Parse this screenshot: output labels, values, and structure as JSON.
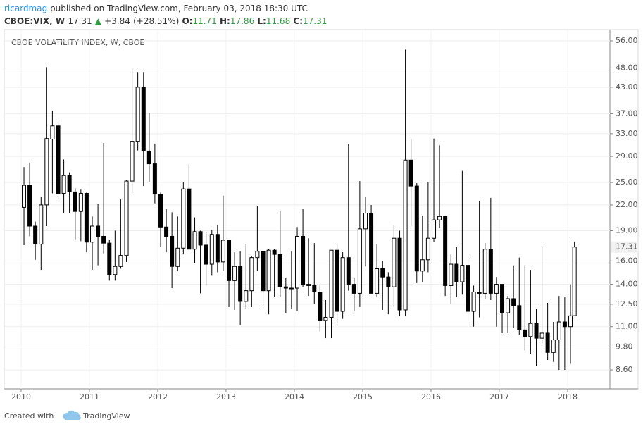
{
  "header": {
    "author": "ricardmag",
    "published": "published on TradingView.com, February 03, 2018 18:30 UTC",
    "symbol": "CBOE:VIX, W",
    "change": "+3.84",
    "change_pct": "(+28.51%)",
    "ohlc_labels": [
      "O:",
      "H:",
      "L:",
      "C:"
    ]
  },
  "chart_data": {
    "type": "candlestick",
    "title": "CBOE VOLATILITY INDEX, W, CBOE",
    "log_scale": true,
    "grid": true,
    "up_color": "#ffffff",
    "down_color": "#000000",
    "wick_color": "#000000",
    "xlim": [
      2009.753,
      2018.619
    ],
    "xticks": [
      2010,
      2011,
      2012,
      2013,
      2014,
      2015,
      2016,
      2017,
      2018
    ],
    "ylim": [
      7.72,
      59.0
    ],
    "yticks": [
      {
        "value": 8.6,
        "label": "8.60"
      },
      {
        "value": 9.8,
        "label": "9.80"
      },
      {
        "value": 11,
        "label": "11.00"
      },
      {
        "value": 12.5,
        "label": "12.50"
      },
      {
        "value": 14,
        "label": "14.00"
      },
      {
        "value": 16,
        "label": "16.00"
      },
      {
        "value": 19,
        "label": "19.00"
      },
      {
        "value": 22,
        "label": "22.00"
      },
      {
        "value": 25,
        "label": "25.00"
      },
      {
        "value": 29,
        "label": "29.00"
      },
      {
        "value": 33,
        "label": "33.00"
      },
      {
        "value": 37,
        "label": "37.00"
      },
      {
        "value": 43,
        "label": "43.00"
      },
      {
        "value": 48,
        "label": "48.00"
      },
      {
        "value": 56,
        "label": "56.00"
      }
    ],
    "x": [
      2010.042,
      2010.125,
      2010.208,
      2010.292,
      2010.375,
      2010.458,
      2010.542,
      2010.625,
      2010.708,
      2010.792,
      2010.875,
      2010.958,
      2011.042,
      2011.125,
      2011.208,
      2011.292,
      2011.375,
      2011.458,
      2011.542,
      2011.625,
      2011.708,
      2011.792,
      2011.875,
      2011.958,
      2012.042,
      2012.125,
      2012.208,
      2012.292,
      2012.375,
      2012.458,
      2012.542,
      2012.625,
      2012.708,
      2012.792,
      2012.875,
      2012.958,
      2013.042,
      2013.125,
      2013.208,
      2013.292,
      2013.375,
      2013.458,
      2013.542,
      2013.625,
      2013.708,
      2013.792,
      2013.875,
      2013.958,
      2014.042,
      2014.125,
      2014.208,
      2014.292,
      2014.375,
      2014.458,
      2014.542,
      2014.625,
      2014.708,
      2014.792,
      2014.875,
      2014.958,
      2015.042,
      2015.125,
      2015.208,
      2015.292,
      2015.375,
      2015.458,
      2015.542,
      2015.625,
      2015.708,
      2015.792,
      2015.875,
      2015.958,
      2016.042,
      2016.125,
      2016.208,
      2016.292,
      2016.375,
      2016.458,
      2016.542,
      2016.625,
      2016.708,
      2016.792,
      2016.875,
      2016.958,
      2017.042,
      2017.125,
      2017.208,
      2017.292,
      2017.375,
      2017.458,
      2017.542,
      2017.625,
      2017.708,
      2017.792,
      2017.875,
      2017.958,
      2018.042,
      2018.1
    ],
    "open": [
      21.7,
      24.6,
      19.5,
      17.6,
      22,
      32,
      34.5,
      23.5,
      26,
      23.7,
      21.2,
      23.5,
      17.8,
      19.5,
      18.4,
      17.7,
      14.8,
      15.5,
      16.5,
      25.2,
      31.6,
      43,
      29.9,
      27.8,
      23.4,
      19.4,
      18.4,
      15.5,
      17.2,
      24.1,
      17.1,
      18.9,
      17.5,
      15.7,
      18.6,
      15.9,
      18,
      14.3,
      15.5,
      12.7,
      13.5,
      16.3,
      16.9,
      13.5,
      17,
      16.6,
      13.8,
      13.7,
      13.7,
      18.4,
      14,
      13.9,
      13.4,
      11.4,
      11.6,
      17,
      12,
      16.3,
      14,
      13.3,
      19.2,
      21,
      13.3,
      15.3,
      14.6,
      13.8,
      18.2,
      12.1,
      28.4,
      24.5,
      15.1,
      16.1,
      18.2,
      20.2,
      20.6,
      13.9,
      15.7,
      14.2,
      15.6,
      12,
      13.4,
      13.3,
      17.1,
      13.3,
      14,
      11.9,
      12.9,
      12.4,
      10.8,
      10.4,
      11.2,
      10.3,
      10.6,
      9.5,
      10.2,
      11.3,
      11,
      11.71
    ],
    "high": [
      27.3,
      28,
      20,
      23,
      48.2,
      37.6,
      35.2,
      28.5,
      26.5,
      24.2,
      24,
      23.6,
      20.6,
      22.1,
      31.3,
      18,
      19,
      22.7,
      25.3,
      48,
      46.9,
      46.9,
      37.2,
      31.2,
      23.6,
      21.5,
      21.1,
      20.6,
      25.1,
      27.7,
      20.5,
      19,
      18.8,
      19.1,
      19.6,
      23.2,
      18,
      16.8,
      16.9,
      17.6,
      16.4,
      21.9,
      17,
      17.1,
      17.1,
      21.3,
      14.5,
      16.9,
      19.4,
      21.5,
      18.2,
      17.7,
      13.9,
      12.8,
      17,
      17.6,
      16.8,
      31.1,
      14.5,
      25.2,
      23,
      22,
      17.6,
      16,
      15,
      19.6,
      19,
      53.3,
      32,
      24.9,
      20.7,
      25,
      32.1,
      30.9,
      20.6,
      16.6,
      17.3,
      26.7,
      16.2,
      13.9,
      22.5,
      17.7,
      22.9,
      14.6,
      14,
      13.1,
      15.6,
      16.3,
      15.6,
      15.2,
      12.2,
      17.3,
      12.6,
      11.3,
      13.1,
      13,
      14,
      17.86
    ],
    "low": [
      17.5,
      18.4,
      16.1,
      15.2,
      19.5,
      23.5,
      22.7,
      21,
      21,
      18,
      17.9,
      16.8,
      15.2,
      15.6,
      16.7,
      14.3,
      14.3,
      15.3,
      15.9,
      23.5,
      30,
      24.5,
      25,
      22.2,
      17.3,
      16.8,
      13.7,
      15.1,
      16.6,
      17.1,
      15.8,
      13.3,
      13.9,
      14.7,
      15,
      15.1,
      12.3,
      12.1,
      11.1,
      12.2,
      12.3,
      15.1,
      12.3,
      11.8,
      13,
      13,
      11.9,
      12.2,
      12,
      13.8,
      13.1,
      12.5,
      10.7,
      10.3,
      10.3,
      11.2,
      11.5,
      13.5,
      12,
      12.3,
      15.5,
      13.3,
      13,
      12.1,
      11.8,
      12.4,
      11.7,
      11.7,
      19.5,
      14.1,
      14.2,
      15,
      17.8,
      19.3,
      13.1,
      12.5,
      13,
      13.2,
      11.3,
      11,
      11.6,
      12.9,
      12.8,
      11,
      10.6,
      10.6,
      10.9,
      10.5,
      9.6,
      9.4,
      8.8,
      9.9,
      9.1,
      9,
      8.6,
      8.6,
      8.9,
      11.68
    ],
    "close": [
      24.6,
      19.5,
      17.6,
      22,
      32.1,
      34.5,
      23.5,
      26,
      23.7,
      21.2,
      23.5,
      17.8,
      19.5,
      18.4,
      17.7,
      14.8,
      15.5,
      16.5,
      25.2,
      31.6,
      43,
      29.9,
      27.8,
      23.4,
      19.4,
      18.4,
      15.5,
      17.2,
      24.1,
      17.1,
      18.9,
      17.5,
      15.7,
      18.6,
      15.9,
      18,
      14.3,
      15.5,
      12.7,
      13.5,
      16.3,
      16.9,
      13.5,
      17,
      16.6,
      13.8,
      13.7,
      13.7,
      18.4,
      14,
      13.9,
      13.4,
      11.4,
      11.6,
      17,
      12,
      16.3,
      14,
      13.3,
      19.2,
      21,
      13.3,
      15.3,
      14.6,
      13.8,
      18.2,
      12.1,
      28.4,
      24.5,
      15.1,
      16.1,
      18.2,
      20.2,
      20.6,
      13.9,
      15.7,
      14.2,
      15.6,
      12,
      13.4,
      13.3,
      17.1,
      13.3,
      14,
      11.9,
      12.9,
      12.4,
      10.8,
      10.4,
      11.2,
      10.3,
      10.6,
      9.5,
      10.2,
      11.3,
      11,
      11.7,
      17.31
    ]
  },
  "footer": {
    "created": "Created with",
    "brand": "TradingView"
  }
}
